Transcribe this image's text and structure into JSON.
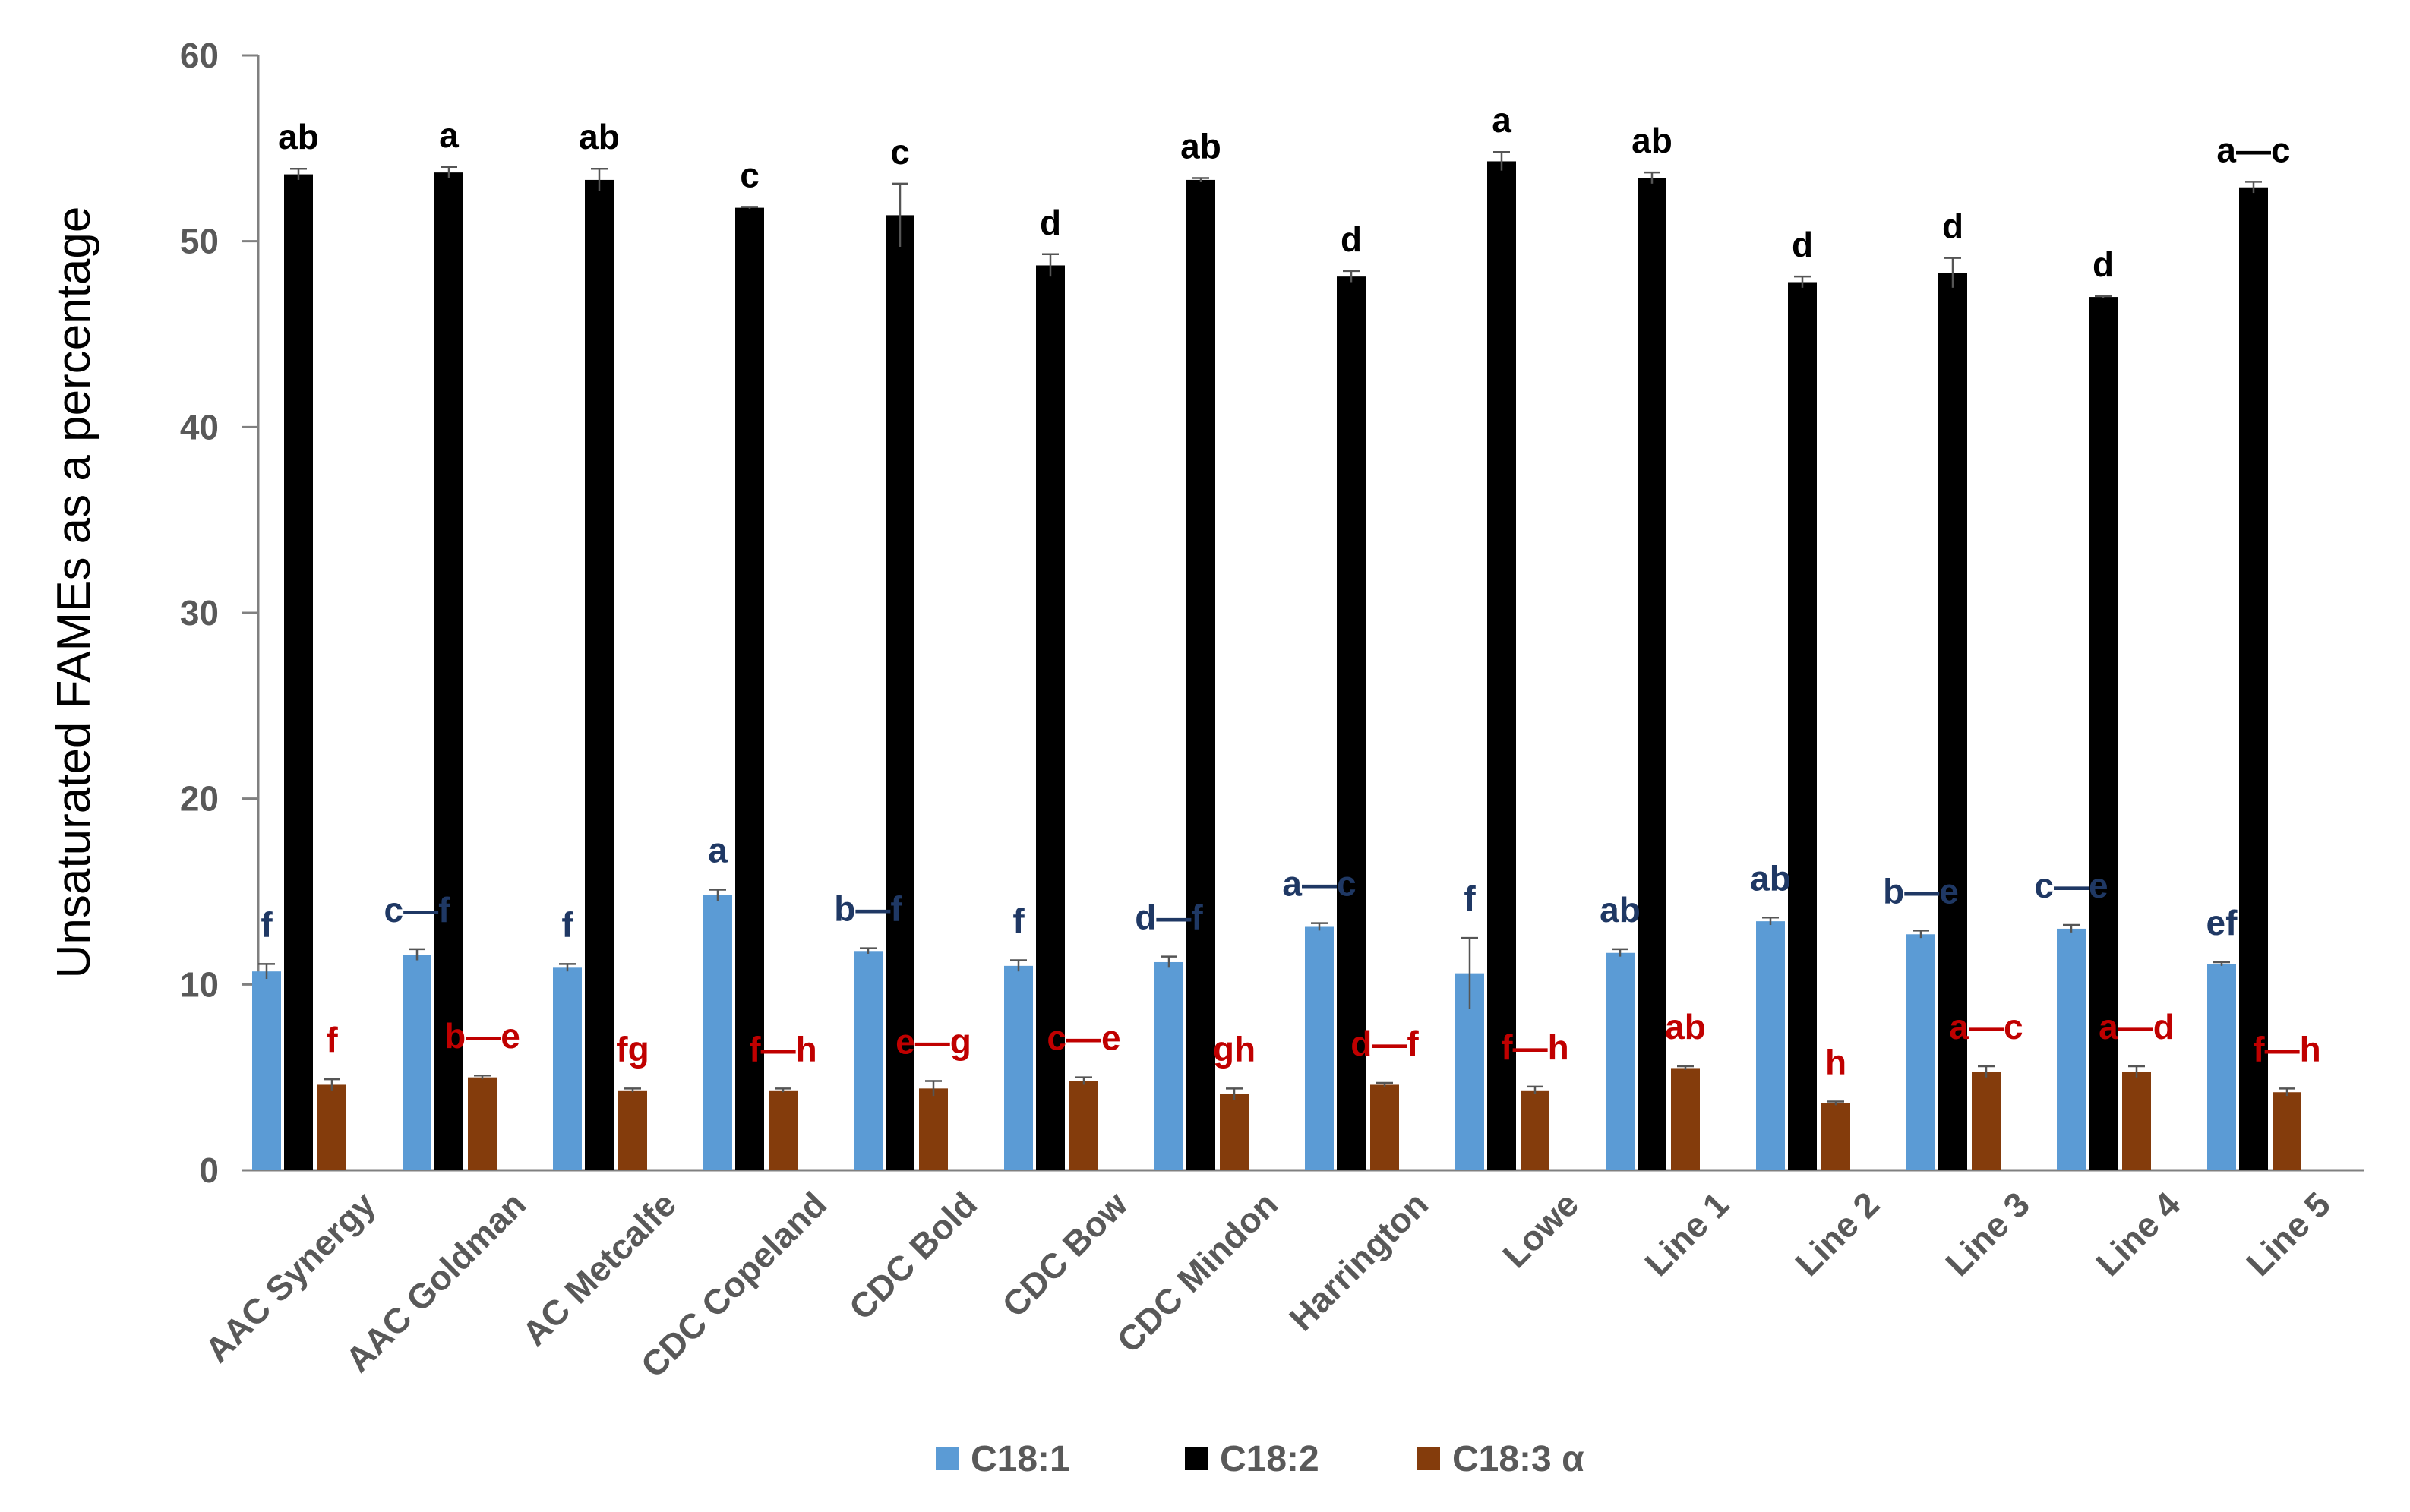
{
  "chart_data": {
    "type": "bar",
    "title": "",
    "xlabel": "",
    "ylabel": "Unsaturated FAMEs as a percentage",
    "ylim": [
      0,
      60
    ],
    "yticks": [
      0,
      10,
      20,
      30,
      40,
      50,
      60
    ],
    "grid": false,
    "legend_position": "bottom",
    "categories": [
      "AAC Synergy",
      "AAC Goldman",
      "AC Metcalfe",
      "CDC Copeland",
      "CDC Bold",
      "CDC Bow",
      "CDC Mindon",
      "Harrington",
      "Lowe",
      "Line 1",
      "Line 2",
      "Line 3",
      "Line 4",
      "Line 5"
    ],
    "series": [
      {
        "name": "C18:1",
        "color": "#5B9BD5",
        "label_color": "#1F3864",
        "values": [
          10.7,
          11.6,
          10.9,
          14.8,
          11.8,
          11.0,
          11.2,
          13.1,
          10.6,
          11.7,
          13.4,
          12.7,
          13.0,
          11.1
        ],
        "errors": [
          0.4,
          0.3,
          0.2,
          0.3,
          0.15,
          0.3,
          0.3,
          0.2,
          1.9,
          0.2,
          0.2,
          0.2,
          0.2,
          0.1
        ],
        "letters": [
          "f",
          "c—f",
          "f",
          "a",
          "b—f",
          "f",
          "d—f",
          "a—c",
          "f",
          "ab",
          "ab",
          "b—e",
          "c—e",
          "ef"
        ]
      },
      {
        "name": "C18:2",
        "color": "#000000",
        "label_color": "#000000",
        "values": [
          53.6,
          53.7,
          53.3,
          51.8,
          51.4,
          48.7,
          53.3,
          48.1,
          54.3,
          53.4,
          47.8,
          48.3,
          47.0,
          52.9
        ],
        "errors": [
          0.3,
          0.3,
          0.6,
          0.05,
          1.7,
          0.6,
          0.1,
          0.3,
          0.5,
          0.3,
          0.3,
          0.8,
          0.05,
          0.3
        ],
        "letters": [
          "ab",
          "a",
          "ab",
          "c",
          "c",
          "d",
          "ab",
          "d",
          "a",
          "ab",
          "d",
          "d",
          "d",
          "a—c"
        ]
      },
      {
        "name": "C18:3 α",
        "color": "#843C0C",
        "label_color": "#C00000",
        "values": [
          4.6,
          5.0,
          4.3,
          4.3,
          4.4,
          4.8,
          4.1,
          4.6,
          4.3,
          5.5,
          3.6,
          5.3,
          5.3,
          4.2
        ],
        "errors": [
          0.3,
          0.1,
          0.1,
          0.1,
          0.4,
          0.2,
          0.3,
          0.1,
          0.2,
          0.1,
          0.1,
          0.3,
          0.3,
          0.2
        ],
        "letters": [
          "f",
          "b—e",
          "fg",
          "f—h",
          "e—g",
          "c—e",
          "gh",
          "d—f",
          "f—h",
          "ab",
          "h",
          "a—c",
          "a—d",
          "f—h"
        ]
      }
    ]
  }
}
